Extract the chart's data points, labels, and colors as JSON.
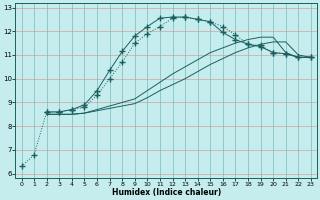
{
  "xlabel": "Humidex (Indice chaleur)",
  "bg_color": "#c5eded",
  "grid_color_h": "#d8a0a0",
  "grid_color_v": "#80b8b8",
  "line_color": "#1a6060",
  "xlim": [
    -0.5,
    23.5
  ],
  "ylim": [
    5.8,
    13.2
  ],
  "xticks": [
    0,
    1,
    2,
    3,
    4,
    5,
    6,
    7,
    8,
    9,
    10,
    11,
    12,
    13,
    14,
    15,
    16,
    17,
    18,
    19,
    20,
    21,
    22,
    23
  ],
  "yticks": [
    6,
    7,
    8,
    9,
    10,
    11,
    12,
    13
  ],
  "line_dotted_x": [
    0,
    1,
    2,
    3,
    4,
    5,
    6,
    7,
    8,
    9,
    10,
    11,
    12,
    13,
    14,
    15,
    16,
    17,
    18,
    19,
    20,
    21,
    22,
    23
  ],
  "line_dotted_y": [
    6.3,
    6.8,
    8.6,
    8.6,
    8.7,
    8.8,
    9.3,
    10.0,
    10.7,
    11.5,
    11.9,
    12.2,
    12.55,
    12.6,
    12.5,
    12.4,
    12.2,
    11.85,
    11.45,
    11.4,
    11.1,
    11.05,
    10.9,
    10.9
  ],
  "line_solid_curve_x": [
    2,
    3,
    4,
    5,
    6,
    7,
    8,
    9,
    10,
    11,
    12,
    13,
    14,
    15,
    16,
    17,
    18,
    19,
    20,
    21,
    22,
    23
  ],
  "line_solid_curve_y": [
    8.6,
    8.6,
    8.7,
    8.9,
    9.5,
    10.35,
    11.15,
    11.8,
    12.2,
    12.55,
    12.6,
    12.6,
    12.5,
    12.4,
    11.95,
    11.65,
    11.45,
    11.35,
    11.1,
    11.05,
    10.9,
    10.9
  ],
  "line_straight1_x": [
    2,
    3,
    4,
    5,
    6,
    7,
    8,
    9,
    10,
    11,
    12,
    13,
    14,
    15,
    16,
    17,
    18,
    19,
    20,
    21,
    22,
    23
  ],
  "line_straight1_y": [
    8.5,
    8.5,
    8.5,
    8.55,
    8.65,
    8.75,
    8.85,
    8.95,
    9.2,
    9.5,
    9.75,
    10.0,
    10.3,
    10.6,
    10.85,
    11.1,
    11.3,
    11.45,
    11.55,
    11.55,
    11.0,
    10.9
  ],
  "line_straight2_x": [
    2,
    3,
    4,
    5,
    6,
    7,
    8,
    9,
    10,
    11,
    12,
    13,
    14,
    15,
    16,
    17,
    18,
    19,
    20,
    21,
    22,
    23
  ],
  "line_straight2_y": [
    8.5,
    8.5,
    8.5,
    8.55,
    8.7,
    8.85,
    9.0,
    9.15,
    9.5,
    9.85,
    10.2,
    10.5,
    10.8,
    11.1,
    11.3,
    11.5,
    11.65,
    11.75,
    11.75,
    11.1,
    10.9,
    10.9
  ],
  "marker": "+",
  "markersize": 4
}
